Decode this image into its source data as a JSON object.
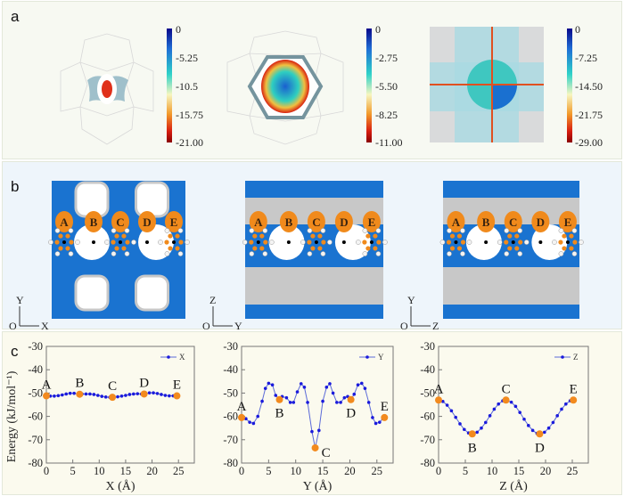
{
  "panels": {
    "a": {
      "label": "a",
      "colorbars": [
        {
          "ticks": [
            "0",
            "-5.25",
            "-10.5",
            "-15.75",
            "-21.00"
          ]
        },
        {
          "ticks": [
            "0",
            "-2.75",
            "-5.50",
            "-8.25",
            "-11.00"
          ]
        },
        {
          "ticks": [
            "0",
            "-7.25",
            "-14.50",
            "-21.75",
            "-29.00"
          ]
        }
      ],
      "colormap": [
        "#08088a",
        "#1f6fd6",
        "#2fd2c8",
        "#f6f6c0",
        "#f29a2a",
        "#d81e10",
        "#8a0000"
      ]
    },
    "b": {
      "label": "b",
      "site_labels": [
        "A",
        "B",
        "C",
        "D",
        "E"
      ],
      "axes": [
        {
          "origin": "O",
          "vertical": "Y",
          "horizontal": "X"
        },
        {
          "origin": "O",
          "vertical": "Z",
          "horizontal": "Y"
        },
        {
          "origin": "O",
          "vertical": "Y",
          "horizontal": "Z"
        }
      ],
      "colors": {
        "surface": "#1a73d0",
        "framework": "#c8c8c8",
        "site": "#f08a1c"
      }
    },
    "c": {
      "label": "c"
    }
  },
  "chart_data": [
    {
      "type": "line",
      "xlabel": "X (Å)",
      "ylabel": "Energy (kJ/mol⁻¹)",
      "xlim": [
        0,
        28
      ],
      "ylim": [
        -80,
        -30
      ],
      "xticks": [
        "0",
        "5",
        "10",
        "15",
        "20",
        "25"
      ],
      "yticks": [
        "-30",
        "-40",
        "-50",
        "-60",
        "-70",
        "-80"
      ],
      "legend": {
        "label": "X",
        "placement": "top-right"
      },
      "series_color": "#1a1adc",
      "marker_color": "#f28a1e",
      "x": [
        0,
        0.75,
        1.5,
        2.25,
        3,
        3.75,
        4.5,
        5.25,
        6,
        6.75,
        7.5,
        8.25,
        9,
        9.75,
        10.5,
        11.25,
        12,
        12.75,
        13.5,
        14.25,
        15,
        15.75,
        16.5,
        17.25,
        18,
        18.75,
        19.5,
        20.25,
        21,
        21.75,
        22.5,
        23.25,
        24,
        24.7
      ],
      "y": [
        -51.2,
        -51.3,
        -51.3,
        -51.1,
        -50.8,
        -50.4,
        -50.1,
        -50.1,
        -50.4,
        -50.4,
        -50.4,
        -50.4,
        -50.6,
        -51,
        -51.4,
        -51.7,
        -51.8,
        -51.8,
        -51.6,
        -51.3,
        -51,
        -50.6,
        -50.4,
        -50.3,
        -50.4,
        -50.2,
        -49.9,
        -49.9,
        -50.2,
        -50.6,
        -51,
        -51.2,
        -51.2,
        -51.2
      ],
      "points": [
        {
          "label": "A",
          "x": 0,
          "y": -51.2,
          "position": "above"
        },
        {
          "label": "B",
          "x": 6.3,
          "y": -50.5,
          "position": "above"
        },
        {
          "label": "C",
          "x": 12.5,
          "y": -51.8,
          "position": "above"
        },
        {
          "label": "D",
          "x": 18.5,
          "y": -50.4,
          "position": "above"
        },
        {
          "label": "E",
          "x": 24.7,
          "y": -51.2,
          "position": "above"
        }
      ]
    },
    {
      "type": "line",
      "xlabel": "Y (Å)",
      "xlim": [
        0,
        28
      ],
      "ylim": [
        -80,
        -30
      ],
      "xticks": [
        "0",
        "5",
        "10",
        "15",
        "20",
        "25"
      ],
      "yticks": [
        "-30",
        "-40",
        "-50",
        "-60",
        "-70",
        "-80"
      ],
      "legend": {
        "label": "Y",
        "placement": "top-right"
      },
      "series_color": "#1a1adc",
      "marker_color": "#f28a1e",
      "x": [
        0,
        0.8,
        1.5,
        2.2,
        3,
        3.8,
        4.4,
        5,
        5.7,
        6.3,
        7,
        7.5,
        8.3,
        9,
        9.6,
        10.3,
        11,
        11.6,
        12.2,
        13,
        13.6,
        14.3,
        15,
        15.7,
        16.3,
        16.9,
        17.6,
        18.3,
        19,
        19.6,
        20.2,
        20.8,
        21.5,
        22.2,
        22.8,
        23.5,
        24.2,
        24.8,
        25.5,
        26.1,
        26.4
      ],
      "y": [
        -60.5,
        -61,
        -62.5,
        -63,
        -60,
        -53.5,
        -48,
        -45.8,
        -46.5,
        -51,
        -52.8,
        -51.5,
        -52,
        -54,
        -54,
        -49.5,
        -46,
        -47.5,
        -54,
        -66.5,
        -73.5,
        -66,
        -53.5,
        -47.5,
        -46,
        -50,
        -54,
        -54,
        -52,
        -51.5,
        -52.8,
        -50.5,
        -46.5,
        -45.8,
        -48,
        -54,
        -60.5,
        -63,
        -62.5,
        -61,
        -60.5
      ],
      "points": [
        {
          "label": "A",
          "x": 0,
          "y": -60.5,
          "position": "above"
        },
        {
          "label": "B",
          "x": 7,
          "y": -52.8,
          "position": "below"
        },
        {
          "label": "C",
          "x": 13.6,
          "y": -73.5,
          "position": "below"
        },
        {
          "label": "D",
          "x": 20.2,
          "y": -52.8,
          "position": "below"
        },
        {
          "label": "E",
          "x": 26.4,
          "y": -60.5,
          "position": "above"
        }
      ]
    },
    {
      "type": "line",
      "xlabel": "Z (Å)",
      "xlim": [
        0,
        28
      ],
      "ylim": [
        -80,
        -30
      ],
      "xticks": [
        "0",
        "5",
        "10",
        "15",
        "20",
        "25"
      ],
      "yticks": [
        "-30",
        "-40",
        "-50",
        "-60",
        "-70",
        "-80"
      ],
      "legend": {
        "label": "Z",
        "placement": "top-right"
      },
      "series_color": "#1a1adc",
      "marker_color": "#f28a1e",
      "x": [
        0,
        0.8,
        1.6,
        2.4,
        3.2,
        4,
        4.8,
        5.6,
        6.3,
        7.2,
        8,
        8.8,
        9.6,
        10.4,
        11.2,
        12,
        12.6,
        13.6,
        14.4,
        15.2,
        16,
        16.8,
        17.6,
        18.4,
        18.9,
        19.8,
        20.6,
        21.4,
        22.2,
        23,
        23.8,
        24.6,
        25.2
      ],
      "y": [
        -53,
        -53.6,
        -55.2,
        -57.6,
        -60.4,
        -63.2,
        -65.6,
        -67.1,
        -67.5,
        -66.8,
        -65,
        -62.6,
        -59.7,
        -56.9,
        -54.7,
        -53.3,
        -53,
        -53.9,
        -55.7,
        -58.3,
        -61.2,
        -63.9,
        -66,
        -67.3,
        -67.5,
        -66.8,
        -65,
        -62.6,
        -59.7,
        -56.9,
        -54.7,
        -53.3,
        -53
      ],
      "points": [
        {
          "label": "A",
          "x": 0,
          "y": -53,
          "position": "above"
        },
        {
          "label": "B",
          "x": 6.3,
          "y": -67.5,
          "position": "below"
        },
        {
          "label": "C",
          "x": 12.6,
          "y": -53,
          "position": "above"
        },
        {
          "label": "D",
          "x": 18.9,
          "y": -67.5,
          "position": "below"
        },
        {
          "label": "E",
          "x": 25.2,
          "y": -53,
          "position": "above"
        }
      ]
    }
  ]
}
